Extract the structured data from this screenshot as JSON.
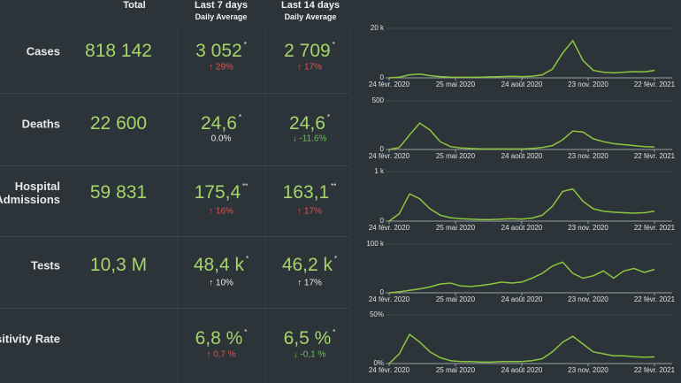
{
  "header": {
    "total": "Total",
    "last7": "Last 7 days",
    "last7_sub": "Daily Average",
    "last14": "Last 14 days",
    "last14_sub": "Daily Average"
  },
  "rows": [
    {
      "label": "Cases",
      "total": "818 142",
      "avg7": "3 052",
      "note7": "*",
      "change7": {
        "text": "↑ 29%",
        "color": "#e0504e"
      },
      "avg14": "2 709",
      "note14": "*",
      "change14": {
        "text": "↑ 17%",
        "color": "#e0504e"
      }
    },
    {
      "label": "Deaths",
      "total": "22 600",
      "avg7": "24,6",
      "note7": "*",
      "change7": {
        "text": "0.0%",
        "color": "#e8e8e8"
      },
      "avg14": "24,6",
      "note14": "*",
      "change14": {
        "text": "↓ -11.6%",
        "color": "#6cbf4e"
      }
    },
    {
      "label": "Hospital Admissions",
      "total": "59 831",
      "avg7": "175,4",
      "note7": "**",
      "change7": {
        "text": "↑ 16%",
        "color": "#e0504e"
      },
      "avg14": "163,1",
      "note14": "**",
      "change14": {
        "text": "↑ 17%",
        "color": "#e0504e"
      }
    },
    {
      "label": "Tests",
      "total": "10,3 M",
      "avg7": "48,4 k",
      "note7": "*",
      "change7": {
        "text": "↑ 10%",
        "color": "#e8e8e8"
      },
      "avg14": "46,2 k",
      "note14": "*",
      "change14": {
        "text": "↑ 17%",
        "color": "#e8e8e8"
      }
    },
    {
      "label": "Positivity Rate",
      "total": "",
      "avg7": "6,8 %",
      "note7": "*",
      "change7": {
        "text": "↑ 0,7 %",
        "color": "#e0504e"
      },
      "avg14": "6,5 %",
      "note14": "*",
      "change14": {
        "text": "↓ -0,1 %",
        "color": "#6cbf4e"
      }
    }
  ],
  "chart_data": [
    {
      "type": "line",
      "color": "#8cc63f",
      "x": [
        "2020-02-24",
        "2020-03-09",
        "2020-03-23",
        "2020-04-06",
        "2020-04-20",
        "2020-05-04",
        "2020-05-18",
        "2020-06-01",
        "2020-06-15",
        "2020-06-29",
        "2020-07-13",
        "2020-07-27",
        "2020-08-10",
        "2020-08-24",
        "2020-09-07",
        "2020-09-21",
        "2020-10-05",
        "2020-10-19",
        "2020-11-02",
        "2020-11-16",
        "2020-11-30",
        "2020-12-14",
        "2020-12-28",
        "2021-01-11",
        "2021-01-25",
        "2021-02-08",
        "2021-02-22"
      ],
      "values": [
        0,
        300,
        1200,
        1500,
        900,
        500,
        300,
        200,
        200,
        300,
        400,
        500,
        600,
        500,
        600,
        1200,
        3500,
        10000,
        15000,
        7000,
        3000,
        2300,
        2000,
        2300,
        2500,
        2400,
        3000
      ],
      "xlim": [
        "2020-02-24",
        "2021-02-22"
      ],
      "xticks": [
        {
          "value": "2020-02-24",
          "label": "24 févr. 2020"
        },
        {
          "value": "2020-05-25",
          "label": "25 mai 2020"
        },
        {
          "value": "2020-08-24",
          "label": "24 août 2020"
        },
        {
          "value": "2020-11-23",
          "label": "23 nov. 2020"
        },
        {
          "value": "2021-02-22",
          "label": "22 févr. 2021"
        }
      ],
      "ylim": [
        0,
        20000
      ],
      "yticks": [
        0,
        {
          "value": 20000,
          "label": "20 k"
        }
      ]
    },
    {
      "type": "line",
      "color": "#8cc63f",
      "x": [
        "2020-02-24",
        "2020-03-09",
        "2020-03-23",
        "2020-04-06",
        "2020-04-20",
        "2020-05-04",
        "2020-05-18",
        "2020-06-01",
        "2020-06-15",
        "2020-06-29",
        "2020-07-13",
        "2020-07-27",
        "2020-08-10",
        "2020-08-24",
        "2020-09-07",
        "2020-09-21",
        "2020-10-05",
        "2020-10-19",
        "2020-11-02",
        "2020-11-16",
        "2020-11-30",
        "2020-12-14",
        "2020-12-28",
        "2021-01-11",
        "2021-01-25",
        "2021-02-08",
        "2021-02-22"
      ],
      "values": [
        0,
        20,
        150,
        270,
        200,
        80,
        30,
        15,
        10,
        5,
        5,
        5,
        5,
        5,
        10,
        20,
        40,
        100,
        190,
        180,
        110,
        80,
        60,
        50,
        40,
        30,
        25
      ],
      "xlim": [
        "2020-02-24",
        "2021-02-22"
      ],
      "xticks": [
        {
          "value": "2020-02-24",
          "label": "24 févr. 2020"
        },
        {
          "value": "2020-05-25",
          "label": "25 mai 2020"
        },
        {
          "value": "2020-08-24",
          "label": "24 août 2020"
        },
        {
          "value": "2020-11-23",
          "label": "23 nov. 2020"
        },
        {
          "value": "2021-02-22",
          "label": "22 févr. 2021"
        }
      ],
      "ylim": [
        0,
        500
      ],
      "yticks": [
        0,
        500
      ]
    },
    {
      "type": "line",
      "color": "#8cc63f",
      "x": [
        "2020-02-24",
        "2020-03-09",
        "2020-03-23",
        "2020-04-06",
        "2020-04-20",
        "2020-05-04",
        "2020-05-18",
        "2020-06-01",
        "2020-06-15",
        "2020-06-29",
        "2020-07-13",
        "2020-07-27",
        "2020-08-10",
        "2020-08-24",
        "2020-09-07",
        "2020-09-21",
        "2020-10-05",
        "2020-10-19",
        "2020-11-02",
        "2020-11-16",
        "2020-11-30",
        "2020-12-14",
        "2020-12-28",
        "2021-01-11",
        "2021-01-25",
        "2021-02-08",
        "2021-02-22"
      ],
      "values": [
        0,
        150,
        550,
        450,
        250,
        120,
        70,
        50,
        40,
        30,
        30,
        40,
        50,
        40,
        60,
        120,
        300,
        600,
        650,
        400,
        250,
        200,
        180,
        170,
        160,
        170,
        200
      ],
      "xlim": [
        "2020-02-24",
        "2021-02-22"
      ],
      "xticks": [
        {
          "value": "2020-02-24",
          "label": "24 févr. 2020"
        },
        {
          "value": "2020-05-25",
          "label": "25 mai 2020"
        },
        {
          "value": "2020-08-24",
          "label": "24 août 2020"
        },
        {
          "value": "2020-11-23",
          "label": "23 nov. 2020"
        },
        {
          "value": "2021-02-22",
          "label": "22 févr. 2021"
        }
      ],
      "ylim": [
        0,
        1000
      ],
      "yticks": [
        0,
        {
          "value": 1000,
          "label": "1 k"
        }
      ]
    },
    {
      "type": "line",
      "color": "#8cc63f",
      "x": [
        "2020-02-24",
        "2020-03-09",
        "2020-03-23",
        "2020-04-06",
        "2020-04-20",
        "2020-05-04",
        "2020-05-18",
        "2020-06-01",
        "2020-06-15",
        "2020-06-29",
        "2020-07-13",
        "2020-07-27",
        "2020-08-10",
        "2020-08-24",
        "2020-09-07",
        "2020-09-21",
        "2020-10-05",
        "2020-10-19",
        "2020-11-02",
        "2020-11-16",
        "2020-11-30",
        "2020-12-14",
        "2020-12-28",
        "2021-01-11",
        "2021-01-25",
        "2021-02-08",
        "2021-02-22"
      ],
      "values": [
        0,
        2000,
        5000,
        8000,
        12000,
        18000,
        20000,
        14000,
        13000,
        15000,
        18000,
        22000,
        20000,
        22000,
        30000,
        40000,
        55000,
        63000,
        40000,
        30000,
        35000,
        45000,
        30000,
        45000,
        50000,
        42000,
        48000
      ],
      "xlim": [
        "2020-02-24",
        "2021-02-22"
      ],
      "xticks": [
        {
          "value": "2020-02-24",
          "label": "24 févr. 2020"
        },
        {
          "value": "2020-05-25",
          "label": "25 mai 2020"
        },
        {
          "value": "2020-08-24",
          "label": "24 août 2020"
        },
        {
          "value": "2020-11-23",
          "label": "23 nov. 2020"
        },
        {
          "value": "2021-02-22",
          "label": "22 févr. 2021"
        }
      ],
      "ylim": [
        0,
        100000
      ],
      "yticks": [
        0,
        {
          "value": 100000,
          "label": "100 k"
        }
      ]
    },
    {
      "type": "line",
      "color": "#8cc63f",
      "x": [
        "2020-02-24",
        "2020-03-09",
        "2020-03-23",
        "2020-04-06",
        "2020-04-20",
        "2020-05-04",
        "2020-05-18",
        "2020-06-01",
        "2020-06-15",
        "2020-06-29",
        "2020-07-13",
        "2020-07-27",
        "2020-08-10",
        "2020-08-24",
        "2020-09-07",
        "2020-09-21",
        "2020-10-05",
        "2020-10-19",
        "2020-11-02",
        "2020-11-16",
        "2020-11-30",
        "2020-12-14",
        "2020-12-28",
        "2021-01-11",
        "2021-01-25",
        "2021-02-08",
        "2021-02-22"
      ],
      "values": [
        0,
        10,
        30,
        22,
        12,
        6,
        3,
        2,
        2,
        1.5,
        1.5,
        2,
        2,
        2,
        3,
        5,
        12,
        22,
        28,
        20,
        12,
        10,
        8,
        8,
        7,
        6.5,
        6.8
      ],
      "xlim": [
        "2020-02-24",
        "2021-02-22"
      ],
      "xticks": [
        {
          "value": "2020-02-24",
          "label": "24 févr. 2020"
        },
        {
          "value": "2020-05-25",
          "label": "25 mai 2020"
        },
        {
          "value": "2020-08-24",
          "label": "24 août 2020"
        },
        {
          "value": "2020-11-23",
          "label": "23 nov. 2020"
        },
        {
          "value": "2021-02-22",
          "label": "22 févr. 2021"
        }
      ],
      "ylim": [
        0,
        50
      ],
      "yticks": [
        {
          "value": 0,
          "label": "0%"
        },
        {
          "value": 50,
          "label": "50%"
        }
      ]
    }
  ]
}
